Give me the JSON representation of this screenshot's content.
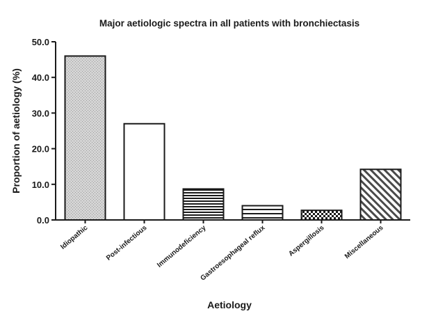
{
  "chart_data": {
    "type": "bar",
    "title": "Major aetiologic spectra in all patients with bronchiectasis",
    "xlabel": "Aetiology",
    "ylabel": "Proportion of aetiology (%)",
    "ylim": [
      0,
      50
    ],
    "yticks": [
      "0.0",
      "10.0",
      "20.0",
      "30.0",
      "40.0",
      "50.0"
    ],
    "grid": false,
    "categories": [
      "Idiopathic",
      "Post-infectious",
      "Immunodeficiency",
      "Gastroesophageal reflux",
      "Aspergillosis",
      "Miscellaneous"
    ],
    "values": [
      46.0,
      27.0,
      8.7,
      4.0,
      2.7,
      14.2
    ],
    "fills": [
      "stipple",
      "white",
      "horizontal-lines",
      "horizontal-lines-wide",
      "checker",
      "diagonal-hatch"
    ],
    "colors": {
      "stroke": "#1a1a1a",
      "stipple": "#d4d4d4",
      "background": "#ffffff"
    }
  }
}
